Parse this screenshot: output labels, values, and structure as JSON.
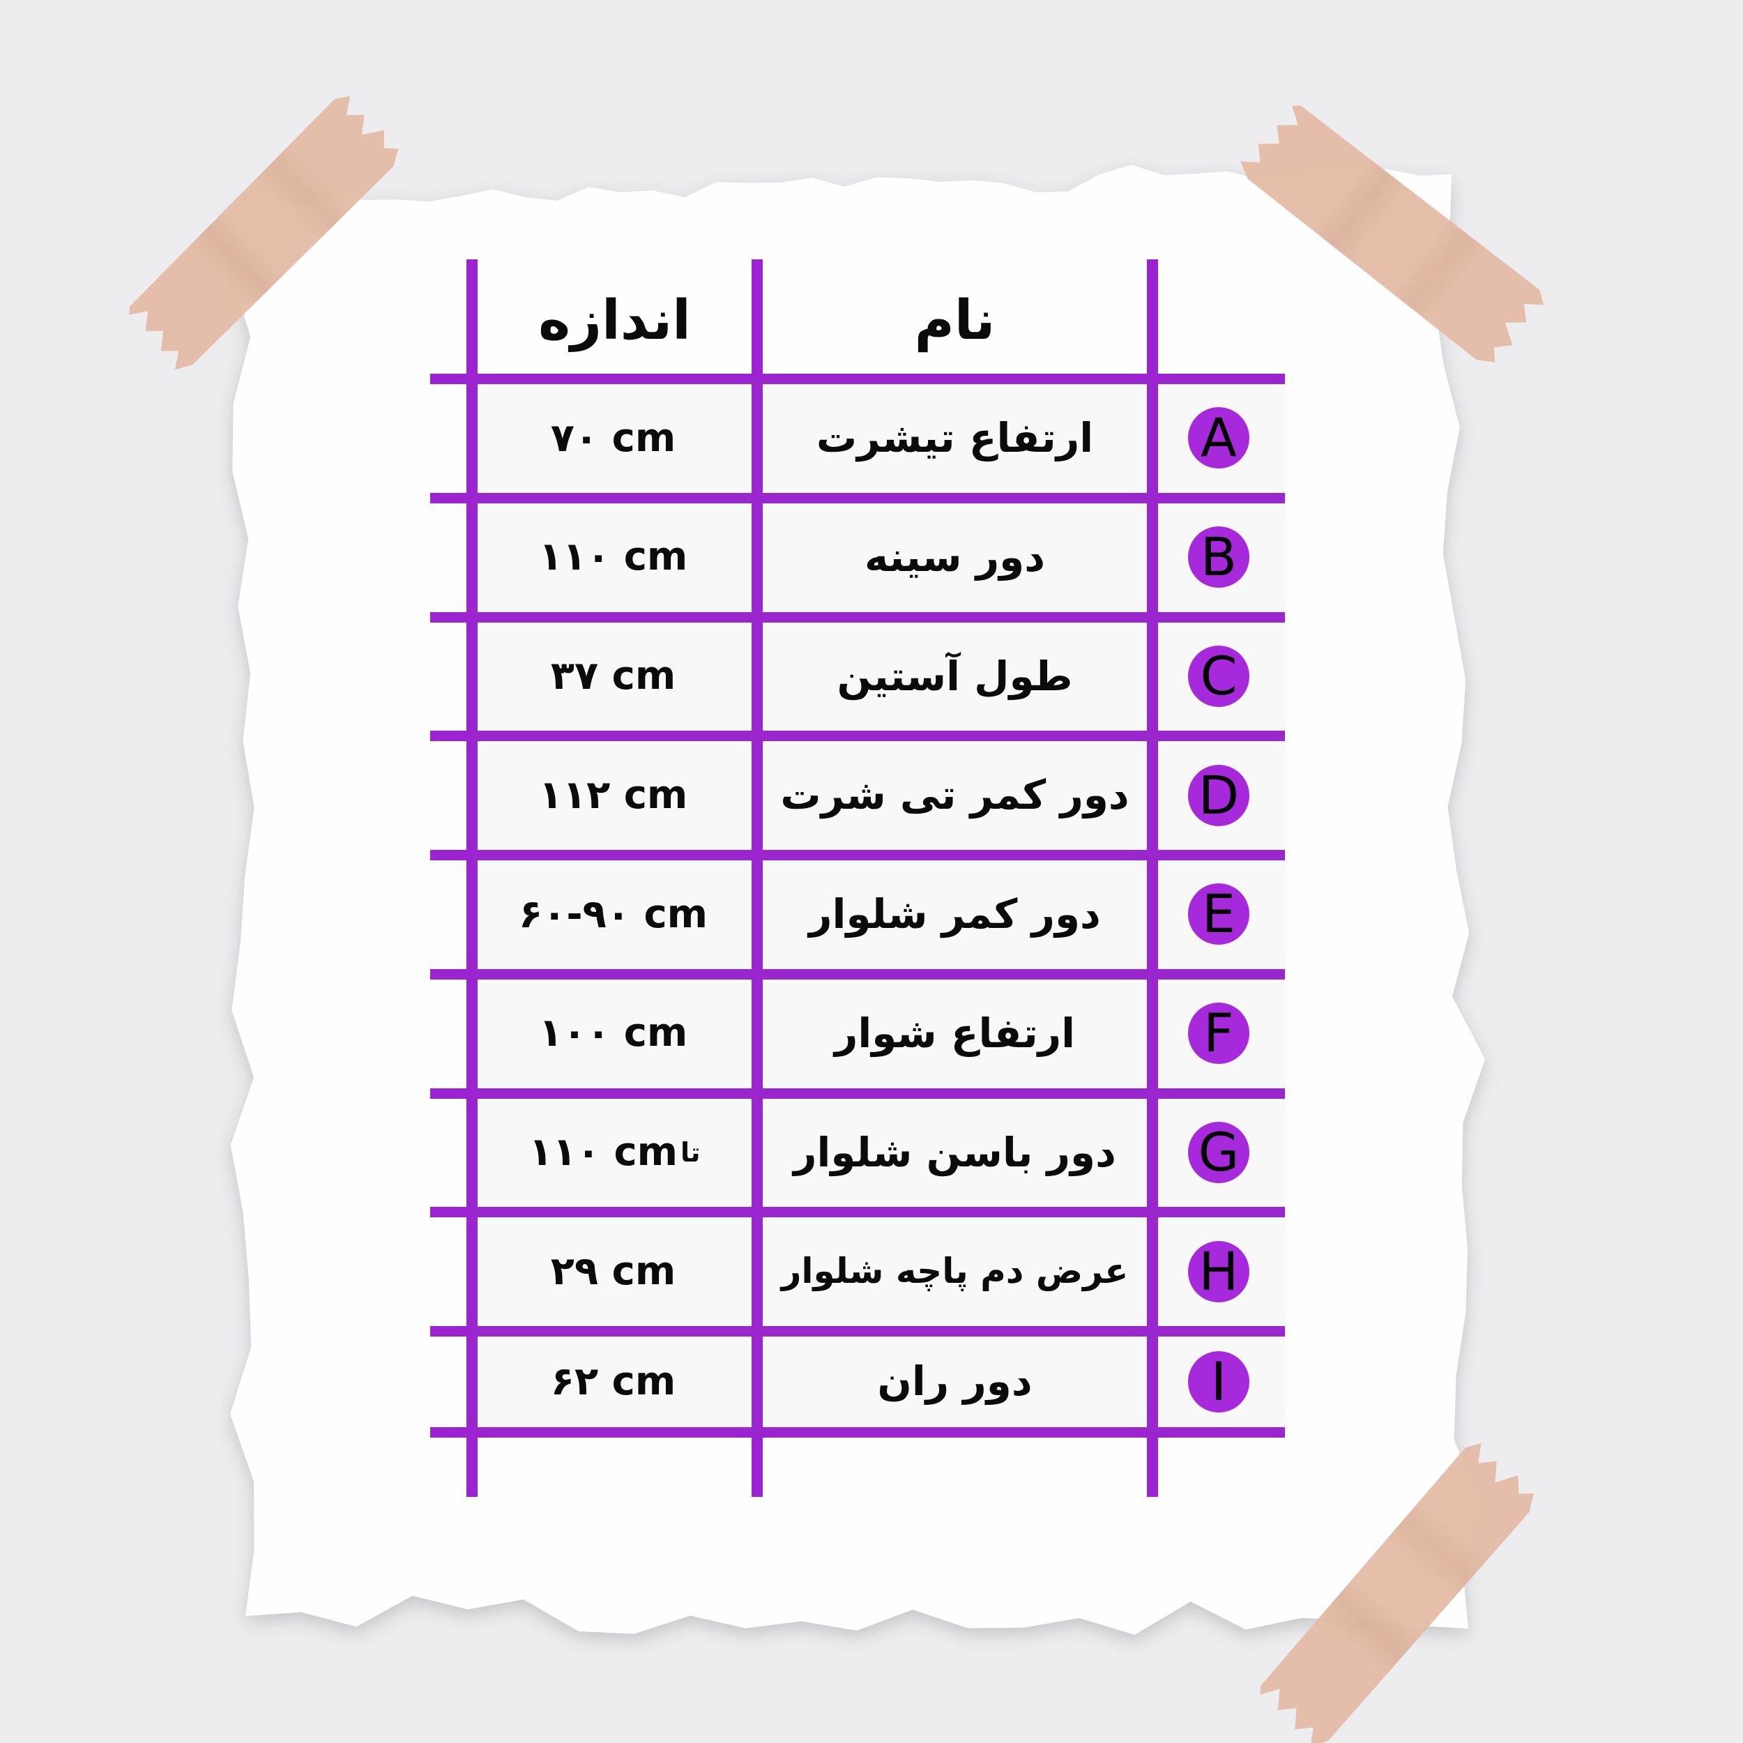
{
  "page": {
    "kind": "taped-paper-size-chart"
  },
  "colors": {
    "background": "#EDEDF0",
    "paper": "#FEFEFE",
    "line": "#9B23D1",
    "badge": "#A62ADB",
    "tape": "#E4BCA6",
    "text": "#0B0B0D"
  },
  "table": {
    "header": {
      "size": "اندازه",
      "name": "نام"
    },
    "rows": [
      {
        "letter": "A",
        "name": "ارتفاع تیشرت",
        "value": "۷۰ cm",
        "value_note": ""
      },
      {
        "letter": "B",
        "name": "دور سینه",
        "value": "۱۱۰ cm",
        "value_note": ""
      },
      {
        "letter": "C",
        "name": "طول آستین",
        "value": "۳۷ cm",
        "value_note": ""
      },
      {
        "letter": "D",
        "name": "دور کمر تی شرت",
        "value": "۱۱۲ cm",
        "value_note": ""
      },
      {
        "letter": "E",
        "name": "دور کمر شلوار",
        "value": "۶۰-۹۰ cm",
        "value_note": ""
      },
      {
        "letter": "F",
        "name": "ارتفاع شوار",
        "value": "۱۰۰ cm",
        "value_note": ""
      },
      {
        "letter": "G",
        "name": "دور باسن شلوار",
        "value": "۱۱۰ cm",
        "value_note": "تا"
      },
      {
        "letter": "H",
        "name": "عرض دم پاچه شلوار",
        "value": "۲۹ cm",
        "value_note": ""
      },
      {
        "letter": "I",
        "name": "دور ران",
        "value": "۶۲ cm",
        "value_note": ""
      }
    ]
  },
  "chart_data": {
    "type": "table",
    "title": "",
    "columns": [
      "اندازه",
      "نام",
      ""
    ],
    "rows": [
      [
        "۷۰ cm",
        "ارتفاع تیشرت",
        "A"
      ],
      [
        "۱۱۰ cm",
        "دور سینه",
        "B"
      ],
      [
        "۳۷ cm",
        "طول آستین",
        "C"
      ],
      [
        "۱۱۲ cm",
        "دور کمر تی شرت",
        "D"
      ],
      [
        "۶۰-۹۰ cm",
        "دور کمر شلوار",
        "E"
      ],
      [
        "۱۰۰ cm",
        "ارتفاع شوار",
        "F"
      ],
      [
        "تا ۱۱۰ cm",
        "دور باسن شلوار",
        "G"
      ],
      [
        "۲۹ cm",
        "عرض دم پاچه شلوار",
        "H"
      ],
      [
        "۶۲ cm",
        "دور ران",
        "I"
      ]
    ],
    "values_unit": "cm",
    "values_numeric": [
      70,
      110,
      37,
      112,
      "60-90",
      100,
      110,
      29,
      62
    ],
    "layout_hints": {
      "direction": "rtl",
      "grid": "on",
      "letter_badges_column": "right"
    }
  }
}
